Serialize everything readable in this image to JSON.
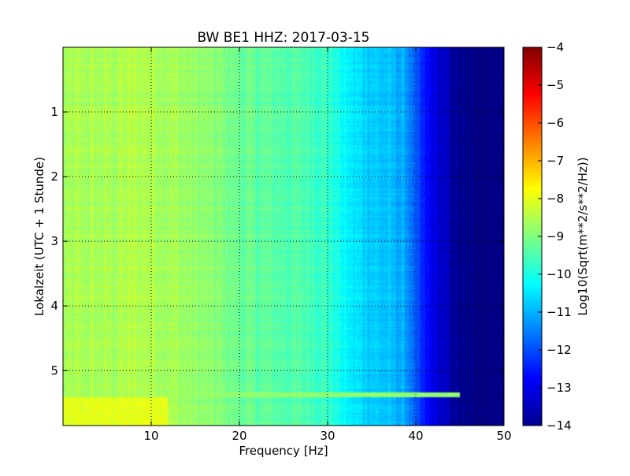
{
  "chart_data": {
    "type": "heatmap",
    "title": "BW BE1 HHZ: 2017-03-15",
    "xlabel": "Frequency [Hz]",
    "ylabel": "Lokalzeit (UTC + 1 Stunde)",
    "xlim": [
      0,
      50
    ],
    "ylim": [
      5.85,
      0.0
    ],
    "y_axis_inverted": true,
    "x_ticks": [
      10,
      20,
      30,
      40,
      50
    ],
    "x_tick_labels": [
      "10",
      "20",
      "30",
      "40",
      "50"
    ],
    "y_ticks": [
      1,
      2,
      3,
      4,
      5
    ],
    "y_tick_labels": [
      "1",
      "2",
      "3",
      "4",
      "5"
    ],
    "grid": true,
    "colormap": "jet",
    "colorbar": {
      "label": "Log10(Sqrt(m**2/s**2/Hz))",
      "range": [
        -14,
        -4
      ],
      "ticks": [
        -4,
        -5,
        -6,
        -7,
        -8,
        -9,
        -10,
        -11,
        -12,
        -13,
        -14
      ],
      "tick_labels": [
        "−4",
        "−5",
        "−6",
        "−7",
        "−8",
        "−9",
        "−10",
        "−11",
        "−12",
        "−13",
        "−14"
      ]
    },
    "frequency_profile": {
      "frequency_hz": [
        0,
        2,
        5,
        8,
        10,
        12,
        15,
        18,
        20,
        22,
        25,
        28,
        30,
        31,
        32,
        33,
        35,
        37,
        38,
        39,
        40,
        41,
        42,
        43,
        44,
        45,
        46,
        50
      ],
      "level_log10": [
        -8.7,
        -8.6,
        -8.6,
        -8.5,
        -8.5,
        -8.6,
        -8.8,
        -9.0,
        -9.2,
        -9.3,
        -9.4,
        -9.5,
        -9.7,
        -10.0,
        -10.3,
        -10.5,
        -10.7,
        -10.9,
        -11.0,
        -11.2,
        -12.0,
        -12.6,
        -13.0,
        -13.3,
        -13.6,
        -13.9,
        -14.0,
        -14.0
      ]
    },
    "features": [
      {
        "type": "band_line",
        "time_h": 5.38,
        "freq_range_hz": [
          10,
          45
        ],
        "level_log10": -8.8
      },
      {
        "type": "high_energy_region",
        "time_range_h": [
          5.4,
          5.85
        ],
        "freq_range_hz": [
          0,
          12
        ],
        "level_log10": -8.0
      }
    ]
  }
}
